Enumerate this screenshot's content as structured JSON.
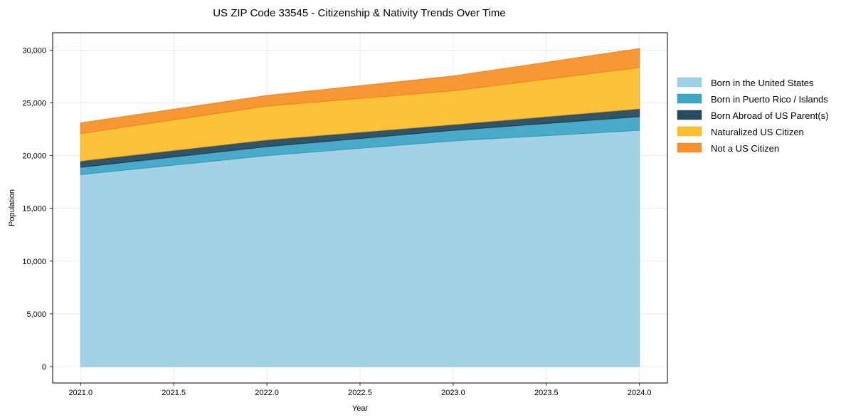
{
  "chart_data": {
    "type": "area",
    "stacked": true,
    "title": "US ZIP Code 33545 - Citizenship & Nativity Trends Over Time",
    "xlabel": "Year",
    "ylabel": "Population",
    "x": [
      2021,
      2022,
      2023,
      2024
    ],
    "xlim": [
      2020.85,
      2024.15
    ],
    "ylim": [
      -1550,
      31650
    ],
    "xticks": [
      2021.0,
      2021.5,
      2022.0,
      2022.5,
      2023.0,
      2023.5,
      2024.0
    ],
    "xtick_labels": [
      "2021.0",
      "2021.5",
      "2022.0",
      "2022.5",
      "2023.0",
      "2023.5",
      "2024.0"
    ],
    "yticks": [
      0,
      5000,
      10000,
      15000,
      20000,
      25000,
      30000
    ],
    "ytick_labels": [
      "0",
      "5,000",
      "10,000",
      "15,000",
      "20,000",
      "25,000",
      "30,000"
    ],
    "grid": true,
    "legend_position": "right",
    "series": [
      {
        "name": "Born in the United States",
        "color": "#9ed0e6",
        "edge": "#8cc4dd",
        "values": [
          18200,
          20000,
          21400,
          22400
        ]
      },
      {
        "name": "Born in Puerto Rico / Islands",
        "color": "#3fa7c6",
        "edge": "#2f97b6",
        "values": [
          700,
          850,
          1000,
          1300
        ]
      },
      {
        "name": "Born Abroad of US Parent(s)",
        "color": "#264b5e",
        "edge": "#1c3a4a",
        "values": [
          600,
          650,
          550,
          750
        ]
      },
      {
        "name": "Naturalized US Citizen",
        "color": "#fcbf2e",
        "edge": "#f5a91a",
        "values": [
          2600,
          3200,
          3200,
          3900
        ]
      },
      {
        "name": "Not a US Citizen",
        "color": "#f7922a",
        "edge": "#ef8318",
        "values": [
          1000,
          1000,
          1400,
          1800
        ]
      }
    ]
  }
}
